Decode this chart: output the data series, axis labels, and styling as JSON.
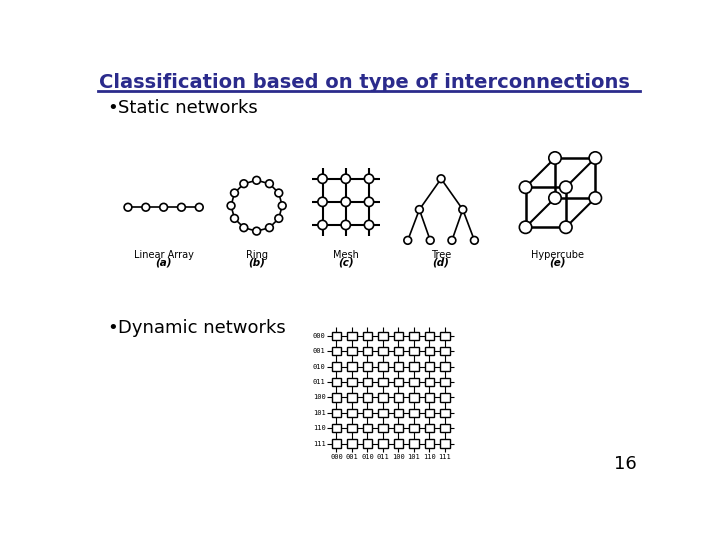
{
  "title": "Classification based on type of interconnections",
  "title_color": "#2b2b8c",
  "bg_color": "#ffffff",
  "bullet1": "Static networks",
  "bullet2": "Dynamic networks",
  "page_number": "16",
  "labels_static": [
    "Linear Array",
    "Ring",
    "Mesh",
    "Tree",
    "Hypercube"
  ],
  "labels_alpha": [
    "(a)",
    "(b)",
    "(c)",
    "(d)",
    "(e)"
  ],
  "row_labels": [
    "000",
    "001",
    "010",
    "011",
    "100",
    "101",
    "110",
    "111"
  ],
  "col_labels": [
    "000",
    "001",
    "010",
    "011",
    "100",
    "101",
    "110",
    "111"
  ]
}
